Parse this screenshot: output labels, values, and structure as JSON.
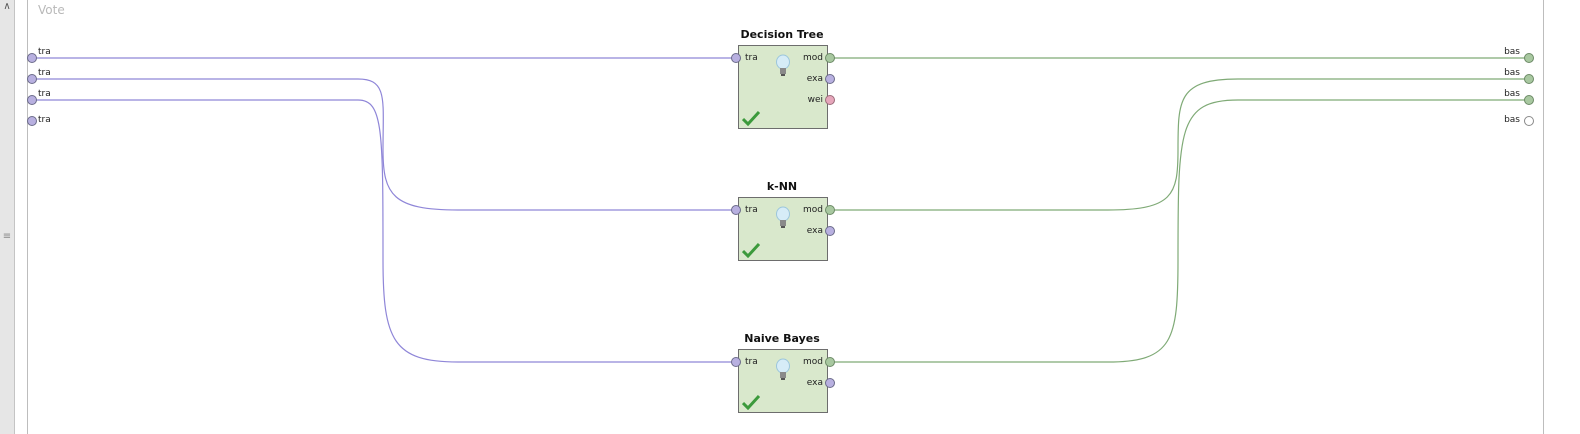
{
  "subprocess": {
    "title": "Vote"
  },
  "input_ports": [
    "tra",
    "tra",
    "tra",
    "tra"
  ],
  "output_ports": [
    "bas",
    "bas",
    "bas",
    "bas"
  ],
  "operators": [
    {
      "name": "Decision Tree",
      "input": "tra",
      "outputs": [
        "mod",
        "exa",
        "wei"
      ],
      "status": "ok"
    },
    {
      "name": "k-NN",
      "input": "tra",
      "outputs": [
        "mod",
        "exa"
      ],
      "status": "ok"
    },
    {
      "name": "Naive Bayes",
      "input": "tra",
      "outputs": [
        "mod",
        "exa"
      ],
      "status": "ok"
    }
  ],
  "colors": {
    "operator_fill": "#d9e8cc",
    "input_wire": "#8f86d8",
    "model_wire": "#7faa76",
    "example_port": "#b8b0e0",
    "model_port": "#a8c8a0",
    "weights_port": "#e6a6bb",
    "check": "#3c9a3c"
  }
}
